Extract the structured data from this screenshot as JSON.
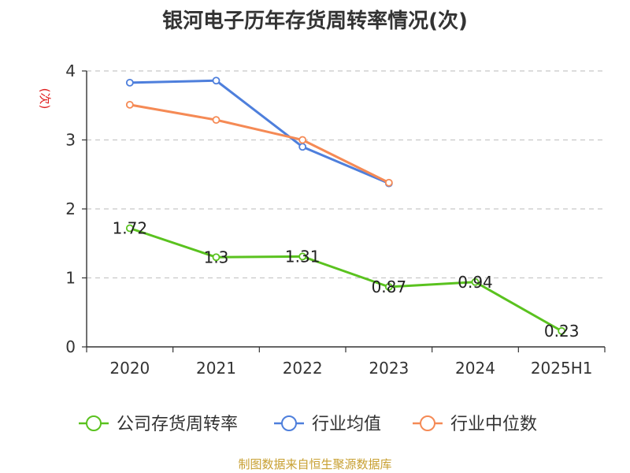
{
  "title": "银河电子历年存货周转率情况(次)",
  "source": "制图数据来自恒生聚源数据库",
  "colors": {
    "company": "#5ac21f",
    "industry_avg": "#4e7fdc",
    "industry_median": "#f58a55",
    "unit": "#e02020"
  },
  "chart_data": {
    "type": "line",
    "title": "银河电子历年存货周转率情况(次)",
    "ylabel": "(次)",
    "xlabel": "",
    "categories": [
      "2020",
      "2021",
      "2022",
      "2023",
      "2024",
      "2025H1"
    ],
    "ylim": [
      0,
      4
    ],
    "yticks": [
      0,
      1,
      2,
      3,
      4
    ],
    "grid": true,
    "legend_position": "bottom",
    "series": [
      {
        "name": "公司存货周转率",
        "color": "#5ac21f",
        "values": [
          1.72,
          1.3,
          1.31,
          0.87,
          0.94,
          0.23
        ],
        "labels": [
          "1.72",
          "1.3",
          "1.31",
          "0.87",
          "0.94",
          "0.23"
        ]
      },
      {
        "name": "行业均值",
        "color": "#4e7fdc",
        "values": [
          3.83,
          3.86,
          2.9,
          2.37,
          null,
          null
        ]
      },
      {
        "name": "行业中位数",
        "color": "#f58a55",
        "values": [
          3.51,
          3.29,
          3.0,
          2.38,
          null,
          null
        ]
      }
    ]
  }
}
